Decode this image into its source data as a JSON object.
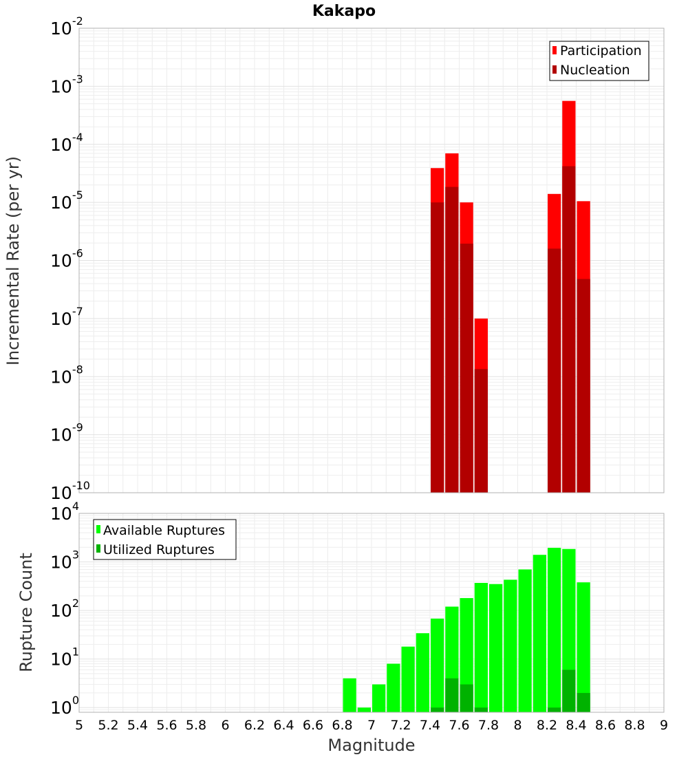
{
  "chart_data": [
    {
      "type": "bar",
      "title": "Kakapo",
      "xlabel": "",
      "ylabel": "Incremental Rate (per yr)",
      "yscale": "log",
      "ylim": [
        1e-10,
        0.01
      ],
      "xlim": [
        5,
        9
      ],
      "bin_width": 0.1,
      "grid": true,
      "legend_placement": "top-right",
      "series": [
        {
          "name": "Participation",
          "color": "#ff0000",
          "x": [
            7.45,
            7.55,
            7.65,
            7.75,
            8.25,
            8.35,
            8.45
          ],
          "values": [
            3.9e-05,
            7e-05,
            1e-05,
            1e-07,
            1.4e-05,
            0.00056,
            1.05e-05
          ]
        },
        {
          "name": "Nucleation",
          "color": "#b20000",
          "x": [
            7.45,
            7.55,
            7.65,
            7.75,
            8.25,
            8.35,
            8.45
          ],
          "values": [
            1e-05,
            1.85e-05,
            1.95e-06,
            1.35e-08,
            1.6e-06,
            4.2e-05,
            4.8e-07
          ]
        }
      ]
    },
    {
      "type": "bar",
      "title": "",
      "xlabel": "Magnitude",
      "ylabel": "Rupture Count",
      "yscale": "log",
      "ylim": [
        0.8,
        10000
      ],
      "xlim": [
        5,
        9
      ],
      "bin_width": 0.1,
      "grid": true,
      "legend_placement": "top-left",
      "x_ticks": [
        "5",
        "5.2",
        "5.4",
        "5.6",
        "5.8",
        "6",
        "6.2",
        "6.4",
        "6.6",
        "6.8",
        "7",
        "7.2",
        "7.4",
        "7.6",
        "7.8",
        "8",
        "8.2",
        "8.4",
        "8.6",
        "8.8",
        "9"
      ],
      "series": [
        {
          "name": "Available Ruptures",
          "color": "#00ff00",
          "x": [
            6.85,
            6.95,
            7.05,
            7.15,
            7.25,
            7.35,
            7.45,
            7.55,
            7.65,
            7.75,
            7.85,
            7.95,
            8.05,
            8.15,
            8.25,
            8.35,
            8.45
          ],
          "values": [
            4,
            1,
            3,
            8,
            18,
            34,
            68,
            120,
            180,
            370,
            350,
            430,
            700,
            1400,
            1950,
            1850,
            380
          ]
        },
        {
          "name": "Utilized Ruptures",
          "color": "#00b200",
          "x": [
            7.45,
            7.55,
            7.65,
            7.75,
            8.25,
            8.35,
            8.45
          ],
          "values": [
            1,
            4,
            3,
            1,
            1,
            6,
            2
          ]
        }
      ]
    }
  ],
  "y_tick_labels": {
    "top": [
      {
        "base": "10",
        "exp": "-2"
      },
      {
        "base": "10",
        "exp": "-3"
      },
      {
        "base": "10",
        "exp": "-4"
      },
      {
        "base": "10",
        "exp": "-5"
      },
      {
        "base": "10",
        "exp": "-6"
      },
      {
        "base": "10",
        "exp": "-7"
      },
      {
        "base": "10",
        "exp": "-8"
      },
      {
        "base": "10",
        "exp": "-9"
      },
      {
        "base": "10",
        "exp": "-10"
      }
    ],
    "bottom": [
      {
        "base": "10",
        "exp": "4"
      },
      {
        "base": "10",
        "exp": "3"
      },
      {
        "base": "10",
        "exp": "2"
      },
      {
        "base": "10",
        "exp": "1"
      },
      {
        "base": "10",
        "exp": "0"
      }
    ]
  }
}
